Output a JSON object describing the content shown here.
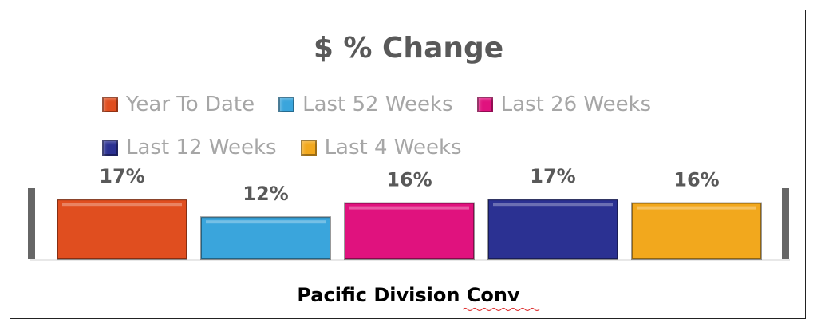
{
  "chart_data": {
    "type": "bar",
    "title": "$ % Change",
    "categories": [
      "Pacific Division Conv"
    ],
    "series": [
      {
        "name": "Year To Date",
        "color": "#e04e1f",
        "values": [
          17
        ],
        "value_labels": [
          "17%"
        ]
      },
      {
        "name": "Last 52 Weeks",
        "color": "#3aa5dc",
        "values": [
          12
        ],
        "value_labels": [
          "12%"
        ]
      },
      {
        "name": "Last 26 Weeks",
        "color": "#e0127e",
        "values": [
          16
        ],
        "value_labels": [
          "16%"
        ]
      },
      {
        "name": "Last 12 Weeks",
        "color": "#2b3192",
        "values": [
          17
        ],
        "value_labels": [
          "17%"
        ]
      },
      {
        "name": "Last 4 Weeks",
        "color": "#f2a81d",
        "values": [
          16
        ],
        "value_labels": [
          "16%"
        ]
      }
    ]
  }
}
